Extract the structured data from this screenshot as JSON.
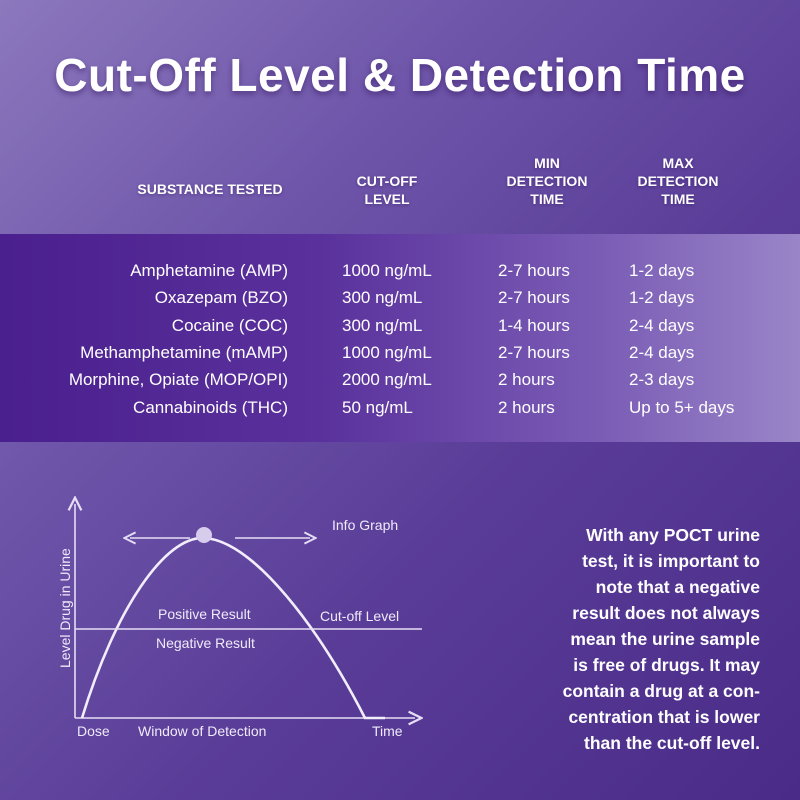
{
  "title": "Cut-Off Level & Detection Time",
  "table": {
    "headers": {
      "substance": "SUBSTANCE TESTED",
      "cutoff": "CUT-OFF\nLEVEL",
      "min": "MIN\nDETECTION\nTIME",
      "max": "MAX\nDETECTION\nTIME"
    },
    "rows": [
      {
        "substance": "Amphetamine (AMP)",
        "cutoff": "1000 ng/mL",
        "min": "2-7 hours",
        "max": "1-2 days"
      },
      {
        "substance": "Oxazepam (BZO)",
        "cutoff": "300 ng/mL",
        "min": "2-7 hours",
        "max": "1-2 days"
      },
      {
        "substance": "Cocaine (COC)",
        "cutoff": "300 ng/mL",
        "min": "1-4 hours",
        "max": "2-4 days"
      },
      {
        "substance": "Methamphetamine (mAMP)",
        "cutoff": "1000 ng/mL",
        "min": "2-7 hours",
        "max": "2-4 days"
      },
      {
        "substance": "Morphine, Opiate (MOP/OPI)",
        "cutoff": "2000 ng/mL",
        "min": "2 hours",
        "max": "2-3 days"
      },
      {
        "substance": "Cannabinoids (THC)",
        "cutoff": "50 ng/mL",
        "min": "2 hours",
        "max": "Up to 5+ days"
      }
    ]
  },
  "graph": {
    "caption": "Info Graph",
    "ylabel": "Level Drug in Urine",
    "positive": "Positive Result",
    "negative": "Negative Result",
    "cutoff": "Cut-off Level",
    "dose": "Dose",
    "window": "Window of Detection",
    "time": "Time"
  },
  "note": "With any POCT urine\ntest, it is important to\nnote that a negative\nresult does not always\nmean the urine sample\nis free of drugs. It may\ncontain a drug at a con-\ncentration that is lower\nthan the cut-off level.",
  "colors": {
    "band_start": "#4a1f8e",
    "band_end": "#9a85c8",
    "line": "#e6def5"
  }
}
